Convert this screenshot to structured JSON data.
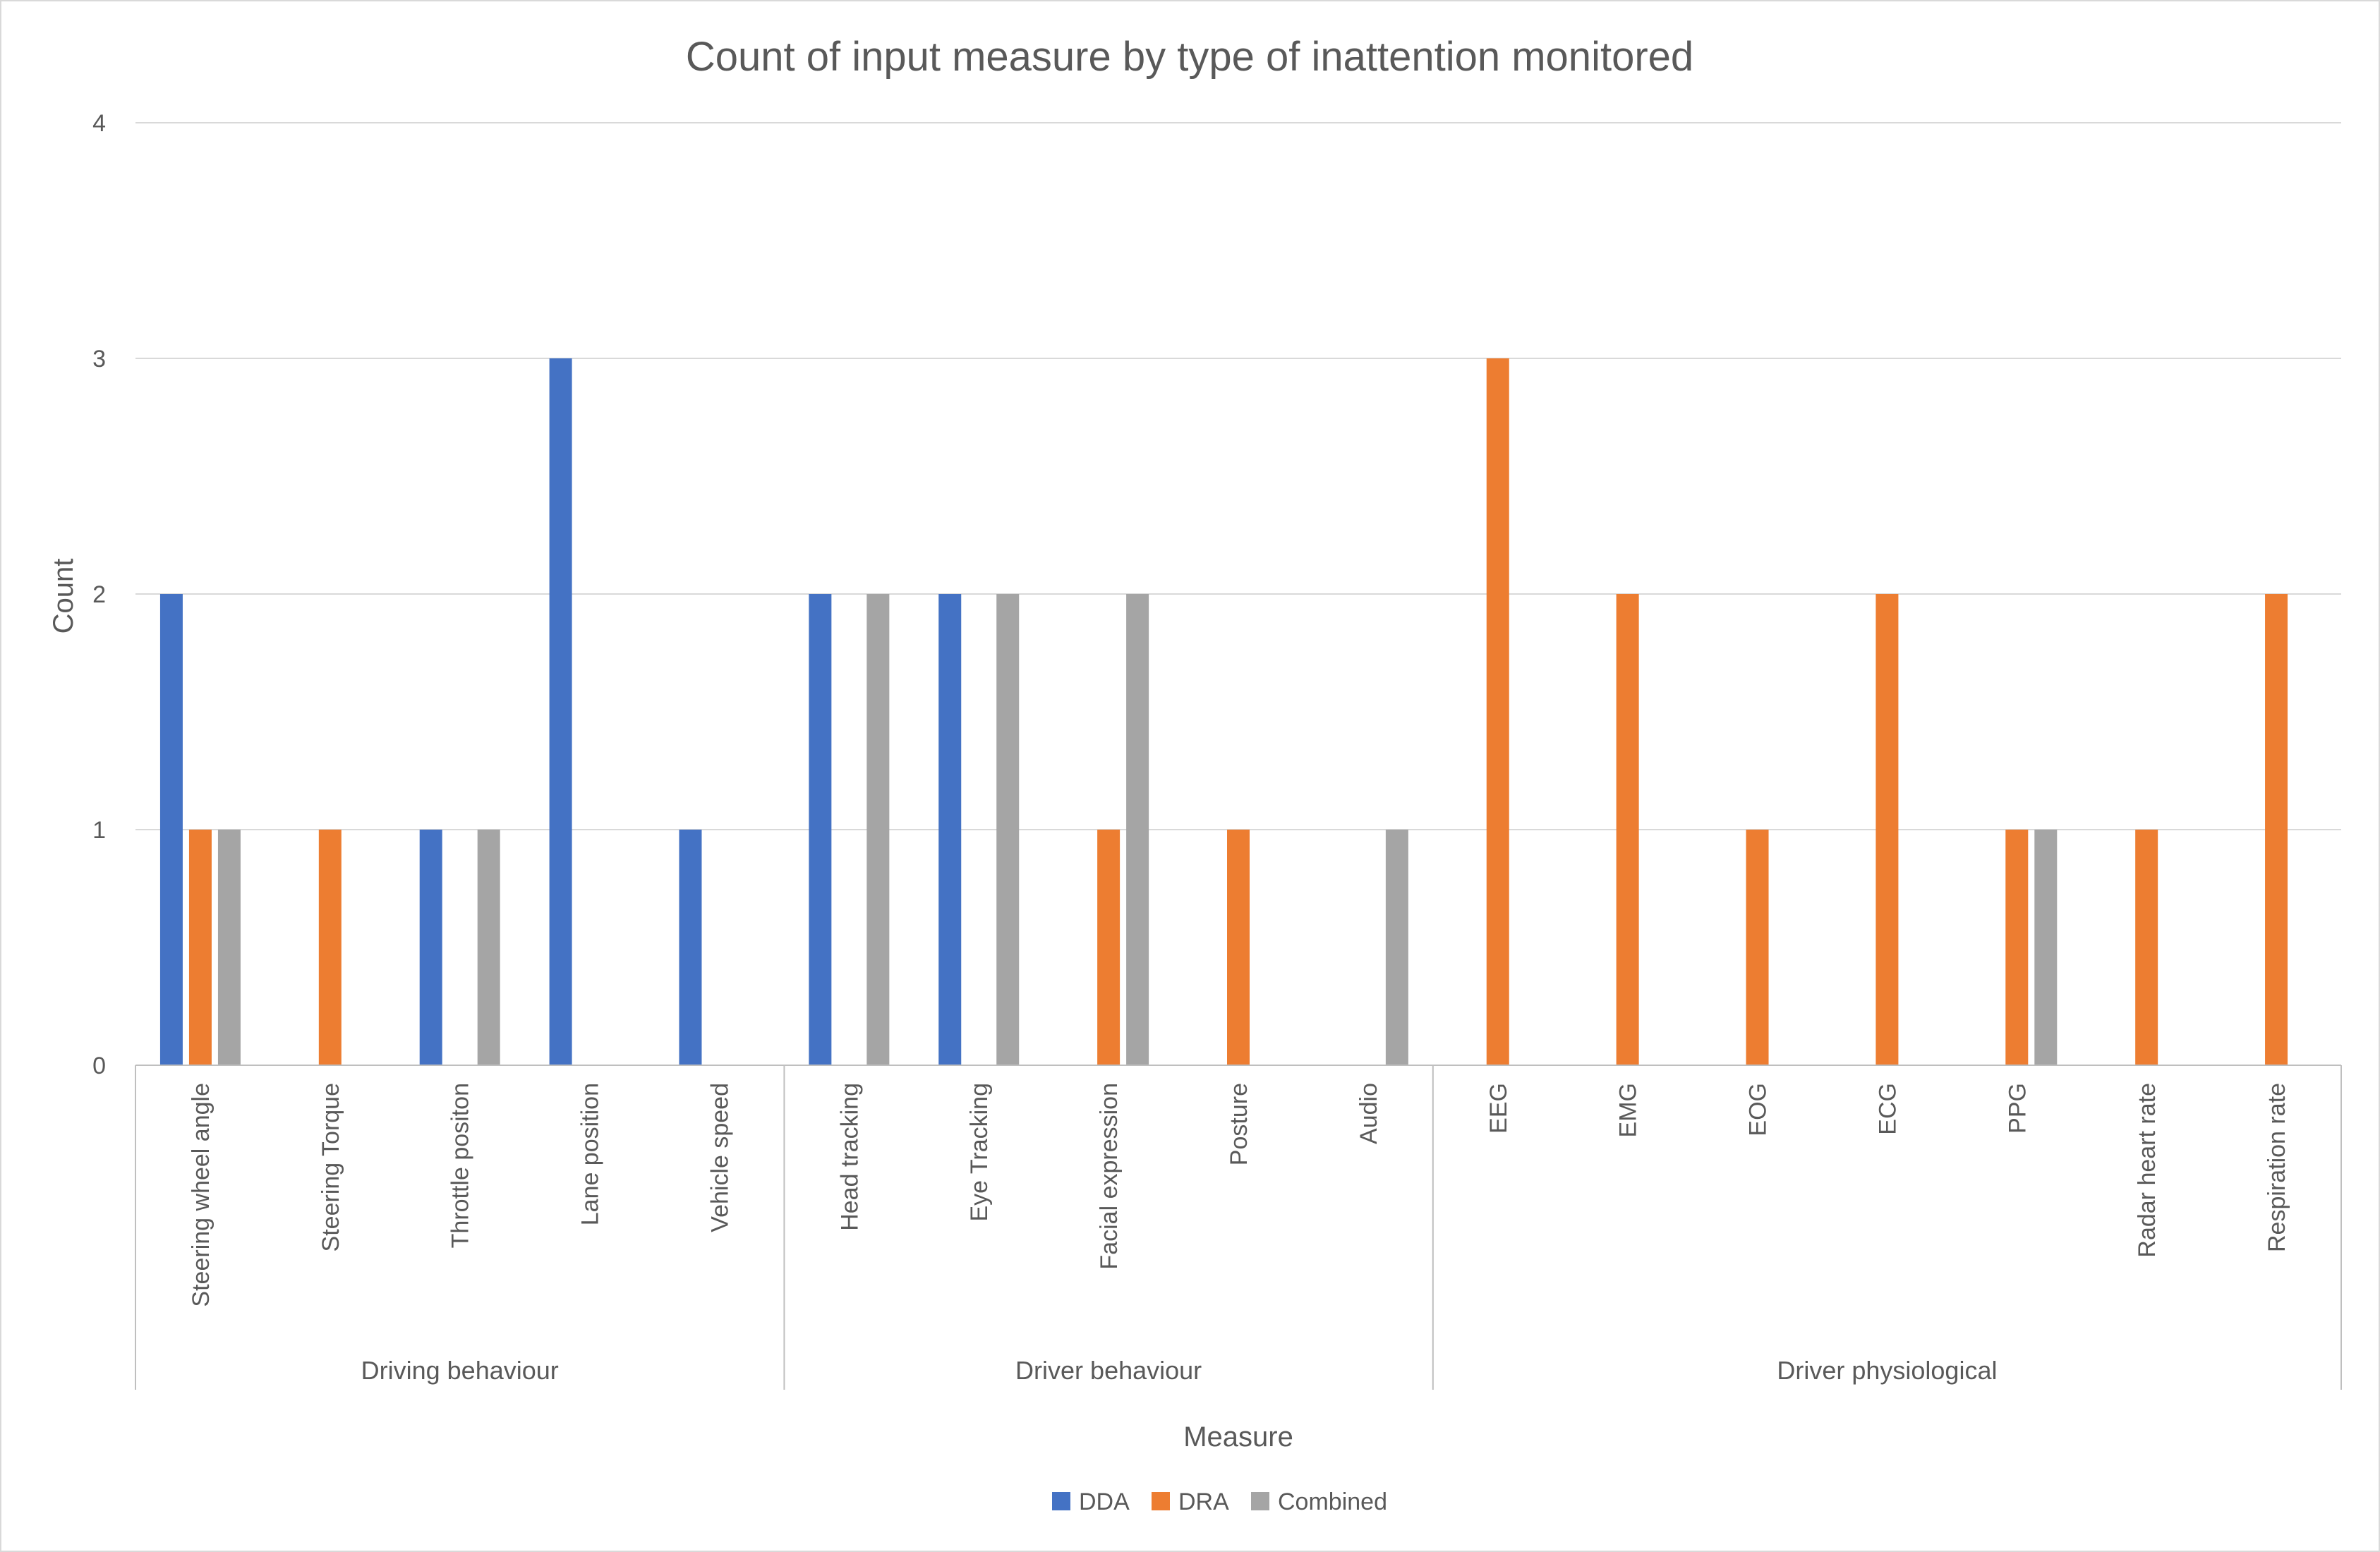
{
  "chart_data": {
    "type": "bar",
    "title": "Count of input measure by type of inattention monitored",
    "xlabel": "Measure",
    "ylabel": "Count",
    "ylim": [
      0,
      4
    ],
    "yticks": [
      0,
      1,
      2,
      3,
      4
    ],
    "grid": true,
    "legend_position": "bottom",
    "groups": [
      {
        "label": "Driving behaviour",
        "categories": [
          "Steering wheel angle",
          "Steering Torque",
          "Throttle positon",
          "Lane position",
          "Vehicle speed"
        ]
      },
      {
        "label": "Driver behaviour",
        "categories": [
          "Head tracking",
          "Eye Tracking",
          "Facial expression",
          "Posture",
          "Audio"
        ]
      },
      {
        "label": "Driver physiological",
        "categories": [
          "EEG",
          "EMG",
          "EOG",
          "ECG",
          "PPG",
          "Radar heart rate",
          "Respiration rate"
        ]
      }
    ],
    "categories": [
      "Steering wheel angle",
      "Steering Torque",
      "Throttle positon",
      "Lane position",
      "Vehicle speed",
      "Head tracking",
      "Eye Tracking",
      "Facial expression",
      "Posture",
      "Audio",
      "EEG",
      "EMG",
      "EOG",
      "ECG",
      "PPG",
      "Radar heart rate",
      "Respiration rate"
    ],
    "series": [
      {
        "name": "DDA",
        "color": "#4472C4",
        "values": [
          2,
          0,
          1,
          3,
          1,
          2,
          2,
          0,
          0,
          0,
          0,
          0,
          0,
          0,
          0,
          0,
          0
        ]
      },
      {
        "name": "DRA",
        "color": "#ED7D31",
        "values": [
          1,
          1,
          0,
          0,
          0,
          0,
          0,
          1,
          1,
          0,
          3,
          2,
          1,
          2,
          1,
          1,
          2
        ]
      },
      {
        "name": "Combined",
        "color": "#A5A5A5",
        "values": [
          1,
          0,
          1,
          0,
          0,
          2,
          2,
          2,
          0,
          1,
          0,
          0,
          0,
          0,
          1,
          0,
          0
        ]
      }
    ]
  }
}
